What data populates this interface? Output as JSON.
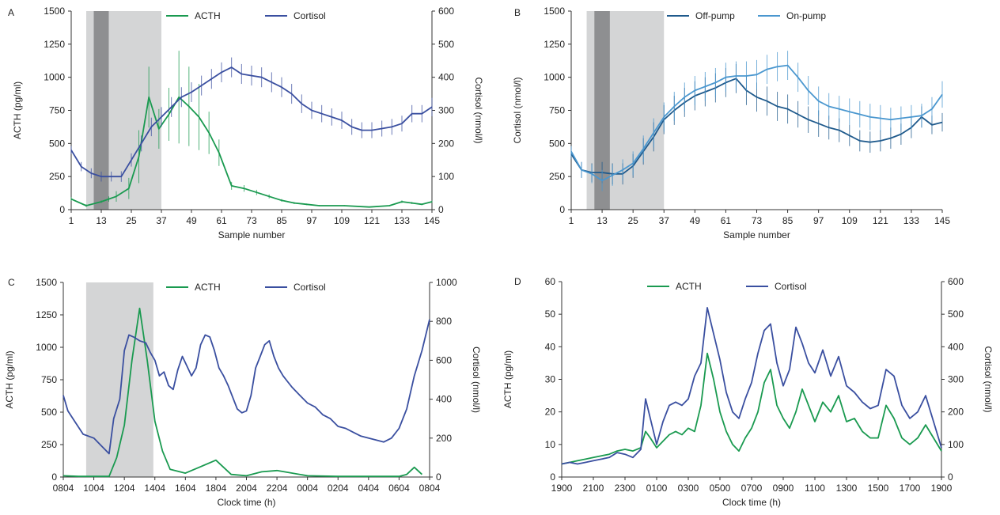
{
  "chart_data": [
    {
      "panel": "A",
      "type": "line",
      "xlabel": "Sample number",
      "ylabel_left": "ACTH (pg/ml)",
      "ylabel_right": "Cortisol (nmol/l)",
      "xlim": [
        1,
        145
      ],
      "ylim_left": [
        0,
        1500
      ],
      "ylim_right": [
        0,
        600
      ],
      "xticks": [
        1,
        13,
        25,
        37,
        49,
        61,
        73,
        85,
        97,
        109,
        121,
        133,
        145
      ],
      "xtick_labels": [
        "1",
        "13",
        "25",
        "37",
        "49",
        "61",
        "73",
        "85",
        "97",
        "109",
        "121",
        "133",
        "145"
      ],
      "yticks_left": [
        "0",
        "250",
        "500",
        "750",
        "1000",
        "1250",
        "1500"
      ],
      "yticks_right": [
        "0",
        "100",
        "200",
        "300",
        "400",
        "500",
        "600"
      ],
      "shaded": [
        {
          "x0": 7,
          "x1": 37,
          "tone": "light"
        },
        {
          "x0": 10,
          "x1": 16,
          "tone": "dark"
        }
      ],
      "legend_items": [
        "ACTH",
        "Cortisol"
      ],
      "series": [
        {
          "name": "ACTH",
          "axis": "left",
          "color": "#1a9a50",
          "error_bars": true,
          "x": [
            1,
            7,
            13,
            16,
            19,
            24,
            28,
            32,
            36,
            40,
            44,
            48,
            52,
            56,
            60,
            65,
            70,
            75,
            80,
            85,
            90,
            95,
            100,
            110,
            120,
            128,
            133,
            137,
            141,
            145
          ],
          "y": [
            80,
            30,
            60,
            80,
            100,
            160,
            400,
            850,
            610,
            720,
            850,
            780,
            700,
            580,
            430,
            180,
            160,
            130,
            100,
            70,
            50,
            40,
            30,
            30,
            20,
            30,
            60,
            50,
            40,
            60
          ],
          "err": [
            15,
            10,
            10,
            20,
            40,
            80,
            200,
            230,
            150,
            200,
            350,
            300,
            250,
            160,
            100,
            30,
            25,
            20,
            15,
            10,
            8,
            6,
            5,
            5,
            4,
            5,
            10,
            8,
            6,
            8
          ]
        },
        {
          "name": "Cortisol",
          "axis": "right",
          "color": "#3a4fa0",
          "error_bars": true,
          "x": [
            1,
            5,
            9,
            13,
            17,
            21,
            25,
            29,
            33,
            37,
            41,
            45,
            49,
            53,
            57,
            61,
            65,
            69,
            73,
            77,
            81,
            85,
            89,
            93,
            97,
            101,
            105,
            109,
            113,
            117,
            121,
            125,
            129,
            133,
            137,
            141,
            145
          ],
          "y": [
            180,
            130,
            110,
            100,
            100,
            100,
            150,
            200,
            250,
            280,
            310,
            340,
            355,
            375,
            395,
            415,
            430,
            410,
            405,
            400,
            385,
            370,
            350,
            320,
            300,
            290,
            280,
            270,
            250,
            240,
            240,
            245,
            250,
            260,
            290,
            290,
            310
          ],
          "err": [
            12,
            14,
            15,
            15,
            15,
            16,
            20,
            24,
            28,
            30,
            30,
            30,
            30,
            30,
            30,
            30,
            30,
            30,
            30,
            30,
            30,
            30,
            30,
            28,
            26,
            26,
            26,
            26,
            24,
            24,
            24,
            24,
            24,
            24,
            26,
            26,
            28
          ]
        }
      ]
    },
    {
      "panel": "B",
      "type": "line",
      "xlabel": "Sample number",
      "ylabel_left": "Cortisol (nmol/l)",
      "xlim": [
        1,
        145
      ],
      "ylim_left": [
        0,
        1500
      ],
      "xticks": [
        1,
        13,
        25,
        37,
        49,
        61,
        73,
        85,
        97,
        109,
        121,
        133,
        145
      ],
      "xtick_labels": [
        "1",
        "13",
        "25",
        "37",
        "49",
        "61",
        "73",
        "85",
        "97",
        "109",
        "121",
        "133",
        "145"
      ],
      "yticks_left": [
        "0",
        "250",
        "500",
        "750",
        "1000",
        "1250",
        "1500"
      ],
      "shaded": [
        {
          "x0": 7,
          "x1": 37,
          "tone": "light"
        },
        {
          "x0": 10,
          "x1": 16,
          "tone": "dark"
        }
      ],
      "legend_items": [
        "Off-pump",
        "On-pump"
      ],
      "series": [
        {
          "name": "Off-pump",
          "axis": "left",
          "color": "#1f5a8c",
          "error_bars": true,
          "x": [
            1,
            5,
            9,
            13,
            17,
            21,
            25,
            29,
            33,
            37,
            41,
            45,
            49,
            53,
            57,
            61,
            65,
            69,
            73,
            77,
            81,
            85,
            89,
            93,
            97,
            101,
            105,
            109,
            113,
            117,
            121,
            125,
            129,
            133,
            137,
            141,
            145
          ],
          "y": [
            420,
            300,
            280,
            280,
            270,
            270,
            330,
            440,
            550,
            680,
            750,
            810,
            860,
            890,
            920,
            960,
            990,
            900,
            850,
            820,
            780,
            760,
            720,
            680,
            650,
            620,
            600,
            560,
            520,
            510,
            520,
            540,
            570,
            620,
            700,
            640,
            660
          ],
          "err": [
            40,
            60,
            70,
            80,
            80,
            80,
            90,
            100,
            110,
            110,
            110,
            110,
            110,
            110,
            110,
            110,
            110,
            110,
            110,
            110,
            110,
            110,
            100,
            100,
            100,
            90,
            90,
            80,
            80,
            80,
            80,
            80,
            80,
            80,
            80,
            70,
            70
          ]
        },
        {
          "name": "On-pump",
          "axis": "left",
          "color": "#4a97cf",
          "error_bars": true,
          "x": [
            1,
            5,
            9,
            13,
            17,
            21,
            25,
            29,
            33,
            37,
            41,
            45,
            49,
            53,
            57,
            61,
            65,
            69,
            73,
            77,
            81,
            85,
            89,
            93,
            97,
            101,
            105,
            109,
            113,
            117,
            121,
            125,
            129,
            133,
            137,
            141,
            145
          ],
          "y": [
            440,
            300,
            270,
            220,
            260,
            300,
            350,
            460,
            580,
            700,
            780,
            850,
            900,
            930,
            960,
            1000,
            1010,
            1010,
            1020,
            1060,
            1080,
            1090,
            1000,
            900,
            820,
            780,
            760,
            740,
            720,
            700,
            690,
            680,
            690,
            700,
            710,
            760,
            870
          ],
          "err": [
            40,
            60,
            70,
            80,
            80,
            80,
            90,
            100,
            110,
            110,
            110,
            110,
            110,
            110,
            110,
            110,
            110,
            110,
            110,
            110,
            110,
            110,
            110,
            110,
            110,
            100,
            100,
            100,
            100,
            100,
            100,
            90,
            90,
            90,
            90,
            90,
            100
          ]
        }
      ]
    },
    {
      "panel": "C",
      "type": "line",
      "xlabel": "Clock time (h)",
      "ylabel_left": "ACTH (pg/ml)",
      "ylabel_right": "Cortisol (nmol/l)",
      "xlim": [
        0,
        24
      ],
      "ylim_left": [
        0,
        1500
      ],
      "ylim_right": [
        0,
        1000
      ],
      "xticks": [
        0,
        2,
        4,
        6,
        8,
        10,
        12,
        14,
        16,
        18,
        20,
        22,
        24
      ],
      "xtick_labels": [
        "0804",
        "1004",
        "1204",
        "1404",
        "1604",
        "1804",
        "2004",
        "2204",
        "0004",
        "0204",
        "0404",
        "0604",
        "0804"
      ],
      "yticks_left": [
        "0",
        "250",
        "500",
        "750",
        "1000",
        "1250",
        "1500"
      ],
      "yticks_right": [
        "0",
        "200",
        "400",
        "600",
        "800",
        "1000"
      ],
      "shaded": [
        {
          "x0": 1.5,
          "x1": 5.9,
          "tone": "light"
        }
      ],
      "legend_items": [
        "ACTH",
        "Cortisol"
      ],
      "series": [
        {
          "name": "ACTH",
          "axis": "left",
          "color": "#1a9a50",
          "x": [
            0,
            1,
            2,
            3,
            3.5,
            4,
            4.5,
            5,
            5.5,
            6,
            6.5,
            7,
            8,
            9,
            10,
            11,
            12,
            13,
            14,
            16,
            18,
            20,
            22,
            22.5,
            23,
            23.5
          ],
          "y": [
            10,
            5,
            5,
            5,
            150,
            400,
            900,
            1300,
            900,
            430,
            200,
            60,
            30,
            80,
            130,
            20,
            10,
            40,
            50,
            10,
            5,
            5,
            5,
            20,
            75,
            20
          ]
        },
        {
          "name": "Cortisol",
          "axis": "right",
          "color": "#3a4fa0",
          "x": [
            0,
            0.3,
            0.8,
            1.3,
            2.0,
            2.5,
            3.0,
            3.3,
            3.7,
            4.0,
            4.3,
            4.6,
            5.0,
            5.4,
            5.7,
            6.0,
            6.3,
            6.6,
            6.9,
            7.2,
            7.5,
            7.8,
            8.1,
            8.4,
            8.7,
            9.0,
            9.3,
            9.6,
            9.9,
            10.2,
            10.5,
            10.8,
            11.1,
            11.4,
            11.7,
            12.0,
            12.3,
            12.6,
            12.9,
            13.2,
            13.5,
            13.8,
            14.1,
            14.4,
            14.7,
            15.0,
            15.5,
            16.0,
            16.5,
            17.0,
            17.5,
            18.0,
            18.5,
            19.0,
            19.5,
            20.0,
            20.5,
            21.0,
            21.5,
            22.0,
            22.5,
            23.0,
            23.5,
            24.0
          ],
          "y": [
            420,
            340,
            280,
            220,
            200,
            160,
            120,
            300,
            400,
            650,
            730,
            720,
            700,
            690,
            640,
            600,
            520,
            540,
            470,
            450,
            550,
            620,
            570,
            520,
            560,
            680,
            730,
            720,
            650,
            560,
            520,
            470,
            410,
            350,
            330,
            340,
            420,
            560,
            620,
            680,
            700,
            620,
            560,
            520,
            490,
            460,
            420,
            380,
            360,
            320,
            300,
            260,
            250,
            230,
            210,
            200,
            190,
            180,
            200,
            250,
            350,
            520,
            650,
            810
          ]
        }
      ]
    },
    {
      "panel": "D",
      "type": "line",
      "xlabel": "Clock time (h)",
      "ylabel_left": "ACTH (pg/ml)",
      "ylabel_right": "Cortisol (nmol/l)",
      "xlim": [
        0,
        24
      ],
      "ylim_left": [
        0,
        60
      ],
      "ylim_right": [
        0,
        600
      ],
      "xticks": [
        0,
        2,
        4,
        6,
        8,
        10,
        12,
        14,
        16,
        18,
        20,
        22,
        24
      ],
      "xtick_labels": [
        "1900",
        "2100",
        "2300",
        "0100",
        "0300",
        "0500",
        "0700",
        "0900",
        "1100",
        "1300",
        "1500",
        "1700",
        "1900"
      ],
      "yticks_left": [
        "0",
        "10",
        "20",
        "30",
        "40",
        "50",
        "60"
      ],
      "yticks_right": [
        "0",
        "100",
        "200",
        "300",
        "400",
        "500",
        "600"
      ],
      "legend_items": [
        "ACTH",
        "Cortisol"
      ],
      "series": [
        {
          "name": "ACTH",
          "axis": "left",
          "color": "#1a9a50",
          "x": [
            0,
            0.5,
            1,
            1.5,
            2,
            2.5,
            3,
            3.5,
            4,
            4.5,
            5,
            5.3,
            5.6,
            6,
            6.4,
            6.8,
            7.2,
            7.6,
            8,
            8.4,
            8.8,
            9.2,
            9.6,
            10,
            10.4,
            10.8,
            11.2,
            11.6,
            12,
            12.4,
            12.8,
            13.2,
            13.6,
            14,
            14.4,
            14.8,
            15.2,
            15.6,
            16,
            16.5,
            17,
            17.5,
            18,
            18.5,
            19,
            19.5,
            20,
            20.5,
            21,
            21.5,
            22,
            22.5,
            23,
            23.5,
            24
          ],
          "y": [
            4,
            4.5,
            5,
            5.5,
            6,
            6.5,
            7,
            8,
            8.5,
            8,
            9,
            14,
            12,
            9,
            11,
            13,
            14,
            13,
            15,
            14,
            22,
            38,
            30,
            20,
            14,
            10,
            8,
            12,
            15,
            20,
            29,
            33,
            22,
            18,
            15,
            20,
            27,
            22,
            17,
            23,
            20,
            25,
            17,
            18,
            14,
            12,
            12,
            22,
            18,
            12,
            10,
            12,
            16,
            12,
            8
          ]
        },
        {
          "name": "Cortisol",
          "axis": "right",
          "color": "#3a4fa0",
          "x": [
            0,
            0.5,
            1,
            1.5,
            2,
            2.5,
            3,
            3.5,
            4,
            4.5,
            5,
            5.3,
            5.6,
            6,
            6.4,
            6.8,
            7.2,
            7.6,
            8,
            8.4,
            8.8,
            9.2,
            9.6,
            10,
            10.4,
            10.8,
            11.2,
            11.6,
            12,
            12.4,
            12.8,
            13.2,
            13.6,
            14,
            14.4,
            14.8,
            15.2,
            15.6,
            16,
            16.5,
            17,
            17.5,
            18,
            18.5,
            19,
            19.5,
            20,
            20.5,
            21,
            21.5,
            22,
            22.5,
            23,
            23.5,
            24
          ],
          "y": [
            40,
            45,
            40,
            45,
            50,
            55,
            60,
            75,
            70,
            60,
            85,
            240,
            180,
            100,
            170,
            220,
            230,
            220,
            240,
            310,
            350,
            520,
            440,
            360,
            260,
            200,
            180,
            240,
            290,
            380,
            450,
            470,
            350,
            280,
            330,
            460,
            410,
            350,
            320,
            390,
            310,
            370,
            280,
            260,
            230,
            210,
            220,
            330,
            310,
            220,
            180,
            200,
            250,
            170,
            90
          ]
        }
      ]
    }
  ]
}
